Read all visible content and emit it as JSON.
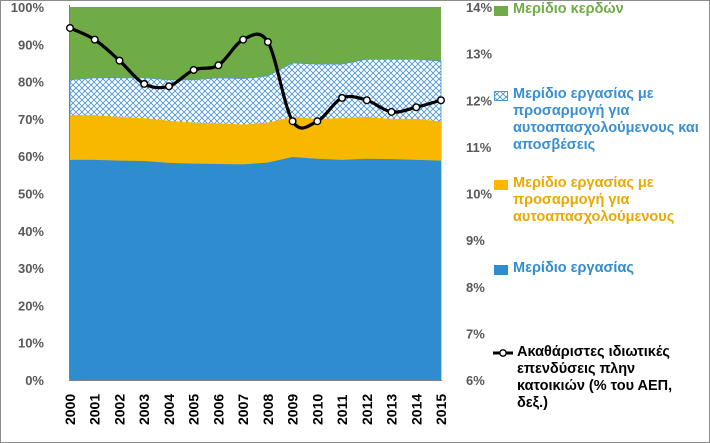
{
  "chart_data": {
    "type": "area",
    "categories": [
      "2000",
      "2001",
      "2002",
      "2003",
      "2004",
      "2005",
      "2006",
      "2007",
      "2008",
      "2009",
      "2010",
      "2011",
      "2012",
      "2013",
      "2014",
      "2015"
    ],
    "series": [
      {
        "name": "Μερίδιο εργασίας",
        "axis": "left",
        "kind": "area",
        "color": "#2f8ccf",
        "values": [
          59.0,
          59.0,
          58.8,
          58.7,
          58.2,
          58.0,
          57.9,
          57.8,
          58.3,
          59.8,
          59.3,
          59.0,
          59.3,
          59.2,
          59.0,
          58.8
        ]
      },
      {
        "name": "Μερίδιο εργασίας με προσαρμογή για αυτοαπασχολούμενους",
        "axis": "left",
        "kind": "area",
        "color": "#f9b800",
        "values": [
          71.0,
          71.0,
          70.5,
          70.2,
          69.5,
          69.0,
          68.8,
          68.5,
          69.0,
          70.5,
          70.0,
          70.2,
          70.5,
          70.0,
          70.0,
          69.3
        ]
      },
      {
        "name": "Μερίδιο εργασίας με προσαρμογή για αυτοαπασχολούμενους και αποσβέσεις",
        "axis": "left",
        "kind": "area",
        "color": "#4c96d4",
        "pattern": "crosshatch",
        "values": [
          80.5,
          81.0,
          81.0,
          81.0,
          80.5,
          80.5,
          81.0,
          80.8,
          81.5,
          85.0,
          84.7,
          84.7,
          86.0,
          86.0,
          86.0,
          85.5
        ]
      },
      {
        "name": "Μερίδιο κερδών",
        "axis": "left",
        "kind": "area",
        "color": "#6fac46",
        "values": [
          100,
          100,
          100,
          100,
          100,
          100,
          100,
          100,
          100,
          100,
          100,
          100,
          100,
          100,
          100,
          100
        ]
      },
      {
        "name": "Ακαθάριστες ιδιωτικές επενδύσεις πλην κατοικιών (% του ΑΕΠ, δεξ.)",
        "axis": "right",
        "kind": "line",
        "color": "#000000",
        "values": [
          13.55,
          13.3,
          12.85,
          12.35,
          12.3,
          12.65,
          12.75,
          13.3,
          13.25,
          11.55,
          11.55,
          12.05,
          12.0,
          11.75,
          11.85,
          12.0
        ]
      }
    ],
    "y_left": {
      "min": 0,
      "max": 100,
      "step": 10,
      "tick_labels": [
        "0%",
        "10%",
        "20%",
        "30%",
        "40%",
        "50%",
        "60%",
        "70%",
        "80%",
        "90%",
        "100%"
      ]
    },
    "y_right": {
      "min": 6,
      "max": 14,
      "step": 1,
      "tick_labels": [
        "6%",
        "7%",
        "8%",
        "9%",
        "10%",
        "11%",
        "12%",
        "13%",
        "14%"
      ]
    },
    "legend_position": "right",
    "grid": false
  },
  "legend": {
    "items": [
      {
        "label": "Μερίδιο κερδών",
        "color": "#6fac46",
        "text_color": "#6fac46",
        "swatch": "solid"
      },
      {
        "label": "Μερίδιο εργασίας με προσαρμογή για αυτοαπασχολούμενους και αποσβέσεις",
        "color": "#4c96d4",
        "text_color": "#3a8fd1",
        "swatch": "hatch"
      },
      {
        "label": "Μερίδιο εργασίας με προσαρμογή για αυτοαπασχολούμενους",
        "color": "#f9b800",
        "text_color": "#e9a900",
        "swatch": "solid"
      },
      {
        "label": "Μερίδιο εργασίας",
        "color": "#2f8ccf",
        "text_color": "#2f8ccf",
        "swatch": "solid"
      },
      {
        "label": "Ακαθάριστες ιδιωτικές επενδύσεις πλην κατοικιών (% του ΑΕΠ, δεξ.)",
        "color": "#000000",
        "text_color": "#000000",
        "swatch": "line"
      }
    ]
  }
}
